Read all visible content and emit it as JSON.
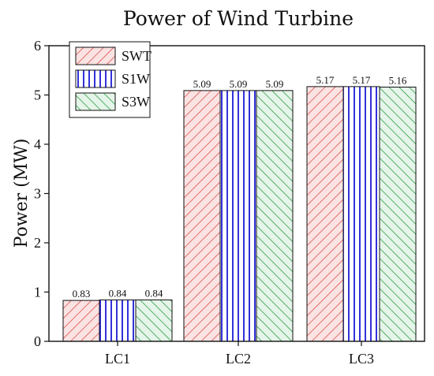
{
  "chart_data": {
    "type": "bar",
    "title": "Power of Wind Turbine",
    "ylabel": "Power (MW)",
    "xlabel": "",
    "ylim": [
      0,
      6
    ],
    "yticks": [
      "0",
      "1",
      "2",
      "3",
      "4",
      "5",
      "6"
    ],
    "categories": [
      "LC1",
      "LC2",
      "LC3"
    ],
    "legend_position": "top-left",
    "series": [
      {
        "name": "SWT",
        "values": [
          0.83,
          5.09,
          5.17
        ],
        "labels": [
          "0.83",
          "5.09",
          "5.17"
        ],
        "color": "#d9534f",
        "fill": "#fbe3e3",
        "hatch": "diagonal-forward"
      },
      {
        "name": "S1W",
        "values": [
          0.84,
          5.09,
          5.17
        ],
        "labels": [
          "0.84",
          "5.09",
          "5.17"
        ],
        "color": "#1a1ad6",
        "fill": "#ffffff",
        "hatch": "vertical"
      },
      {
        "name": "S3W",
        "values": [
          0.84,
          5.09,
          5.16
        ],
        "labels": [
          "0.84",
          "5.09",
          "5.16"
        ],
        "color": "#2e9e4a",
        "fill": "#e6f5e9",
        "hatch": "diagonal-backward"
      }
    ]
  }
}
